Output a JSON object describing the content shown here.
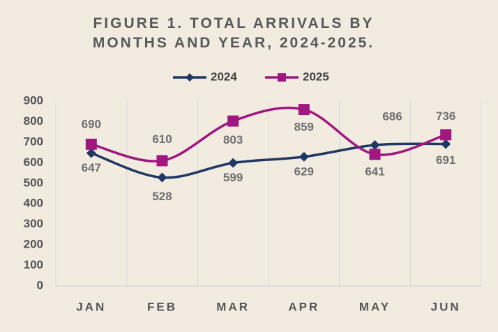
{
  "chart_data": {
    "type": "line",
    "title": "FIGURE 1. TOTAL ARRIVALS BY MONTHS AND YEAR, 2024-2025.",
    "categories": [
      "JAN",
      "FEB",
      "MAR",
      "APR",
      "MAY",
      "JUN"
    ],
    "series": [
      {
        "name": "2024",
        "color": "#1f3864",
        "marker": "diamond",
        "values": [
          647,
          528,
          599,
          629,
          686,
          691
        ]
      },
      {
        "name": "2025",
        "color": "#a0187f",
        "marker": "square",
        "values": [
          690,
          610,
          803,
          859,
          641,
          736
        ]
      }
    ],
    "ylim": [
      0,
      900
    ],
    "yticks": [
      0,
      100,
      200,
      300,
      400,
      500,
      600,
      700,
      800,
      900
    ],
    "smooth": true,
    "legend": "top"
  }
}
